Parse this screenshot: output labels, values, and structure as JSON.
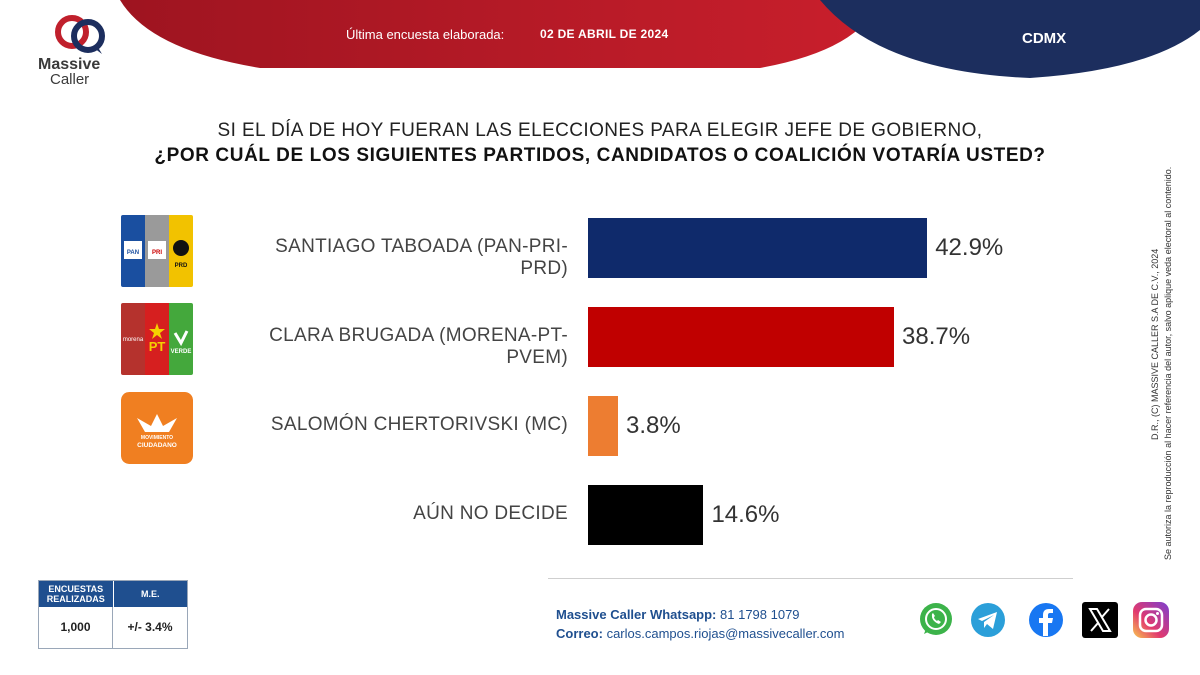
{
  "brand": {
    "name_line1": "Massive",
    "name_line2": "Caller"
  },
  "header": {
    "survey_label": "Última encuesta elaborada:",
    "survey_date": "02 DE ABRIL DE 2024",
    "region": "CDMX"
  },
  "question": {
    "line1": "SI EL DÍA DE HOY FUERAN LAS ELECCIONES PARA ELEGIR JEFE DE GOBIERNO,",
    "line2": "¿POR CUÁL DE LOS SIGUIENTES PARTIDOS, CANDIDATOS O COALICIÓN VOTARÍA USTED?"
  },
  "chart_data": {
    "type": "bar",
    "orientation": "horizontal",
    "categories": [
      "SANTIAGO TABOADA (PAN-PRI-PRD)",
      "CLARA BRUGADA (MORENA-PT-PVEM)",
      "SALOMÓN CHERTORIVSKI (MC)",
      "AÚN NO DECIDE"
    ],
    "values": [
      42.9,
      38.7,
      3.8,
      14.6
    ],
    "value_labels": [
      "42.9%",
      "38.7%",
      "3.8%",
      "14.6%"
    ],
    "colors": [
      "#0f2a6b",
      "#c00000",
      "#ed7d31",
      "#000000"
    ],
    "xlim": [
      0,
      43
    ],
    "grid": false
  },
  "party_logos": [
    {
      "icon": "pan-pri-prd-logo",
      "texts": [
        "PAN",
        "PRI",
        "PRD"
      ],
      "colors": [
        "#1a4fa0",
        "#9a9a9a",
        "#f2c200"
      ]
    },
    {
      "icon": "morena-pt-verde-logo",
      "texts": [
        "morena",
        "PT",
        "VERDE"
      ],
      "colors": [
        "#b5322d",
        "#d61f1f",
        "#44a83c"
      ]
    },
    {
      "icon": "movimiento-ciudadano-logo",
      "texts": [
        "MOVIMIENTO",
        "CIUDADANO"
      ],
      "colors": [
        "#f07f21"
      ]
    }
  ],
  "stats_table": {
    "headers": [
      "ENCUESTAS REALIZADAS",
      "M.E."
    ],
    "values": [
      "1,000",
      "+/- 3.4%"
    ]
  },
  "contact": {
    "whatsapp_label": "Massive Caller Whatsapp:",
    "whatsapp_number": "81 1798 1079",
    "email_label": "Correo:",
    "email": "carlos.campos.riojas@massivecaller.com"
  },
  "social_icons": [
    "whatsapp-icon",
    "telegram-icon",
    "facebook-icon",
    "x-icon",
    "instagram-icon"
  ],
  "side_note": {
    "line1": "D.R., (C) MASSIVE CALLER S.A DE C.V., 2024",
    "line2": "Se autoriza la reproducción al hacer referencia del autor, salvo aplique veda electoral al contenido."
  }
}
